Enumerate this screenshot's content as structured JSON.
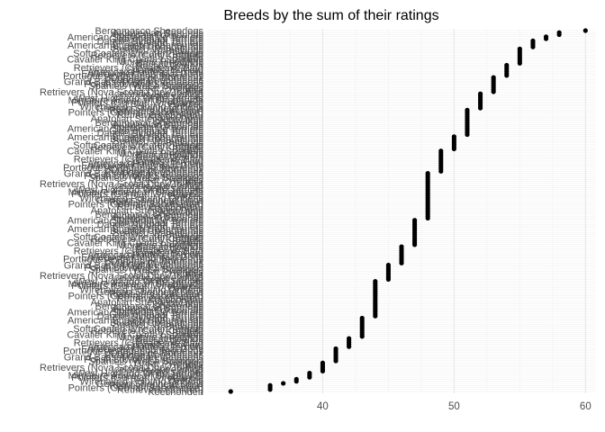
{
  "chart_data": {
    "type": "scatter",
    "title": "Breeds by the sum of their ratings",
    "xlabel": "",
    "ylabel": "",
    "xlim": [
      31.2,
      60.8
    ],
    "x_ticks": [
      40,
      50,
      60
    ],
    "grid": true,
    "legend": "none",
    "point_color": "#000000",
    "tick_label_color": "#4d4d4d",
    "y_category_labels_visible": [
      "Keeshonden",
      "Retrievers (Golden)",
      "Pointers (German Shorthaired)",
      "Retrievers (Labrador)",
      "German Shepherd Dogs",
      "Wirehaired Pointing Griffons",
      "Poodles",
      "Pointers (German Wirehaired)",
      "Miniature American Shepherds",
      "West Highland White Terriers",
      "Setters (Irish)",
      "Icelandic Sheepdogs",
      "Retrievers (Nova Scotia Duck Tolling)",
      "Pumik",
      "Great Pyrenees",
      "Spaniels (Welsh Springer)",
      "Polish Lowland Sheepdogs",
      "Grand Basset Griffon Vendeens",
      "Redbone Coonhounds",
      "Dogues de Bordeaux",
      "Portuguese Podengo Pequenos",
      "Entlebucher Mountain Dogs",
      "American Hairless Terriers",
      "Spaniels (Boykin)",
      "Retrievers (Chesapeake Bay)",
      "Russell Terriers",
      "Basset Hounds",
      "Miniature Pinschers",
      "Cavalier King Charles Spaniels",
      "Briards",
      "Retrievers (Curly-Coated)",
      "Soft Coated Wheaten Terriers",
      "Bulldogs",
      "Spanish Water Dogs",
      "Bluetick Coonhounds",
      "American English Coonhounds",
      "Lakeland Terriers",
      "Dandie Dinmont Terriers",
      "Glen of Imaal Terriers",
      "American Staffordshire Terriers",
      "American Foxhounds",
      "Norwegian Buhunds",
      "Bergamasco Sheepdogs",
      "Azawakhs",
      "Anatolian Shepherd Dogs"
    ],
    "series": [
      {
        "values_by_score": [
          {
            "x": 33,
            "count": 1
          },
          {
            "x": 36,
            "count": 3
          },
          {
            "x": 37,
            "count": 1
          },
          {
            "x": 38,
            "count": 2
          },
          {
            "x": 39,
            "count": 3
          },
          {
            "x": 40,
            "count": 5
          },
          {
            "x": 41,
            "count": 7
          },
          {
            "x": 42,
            "count": 5
          },
          {
            "x": 43,
            "count": 10
          },
          {
            "x": 44,
            "count": 18
          },
          {
            "x": 45,
            "count": 8
          },
          {
            "x": 46,
            "count": 9
          },
          {
            "x": 47,
            "count": 13
          },
          {
            "x": 48,
            "count": 23
          },
          {
            "x": 49,
            "count": 11
          },
          {
            "x": 50,
            "count": 7
          },
          {
            "x": 51,
            "count": 13
          },
          {
            "x": 52,
            "count": 8
          },
          {
            "x": 53,
            "count": 8
          },
          {
            "x": 54,
            "count": 6
          },
          {
            "x": 55,
            "count": 8
          },
          {
            "x": 56,
            "count": 4
          },
          {
            "x": 57,
            "count": 2
          },
          {
            "x": 58,
            "count": 2
          },
          {
            "x": 60,
            "count": 1
          }
        ]
      }
    ]
  }
}
